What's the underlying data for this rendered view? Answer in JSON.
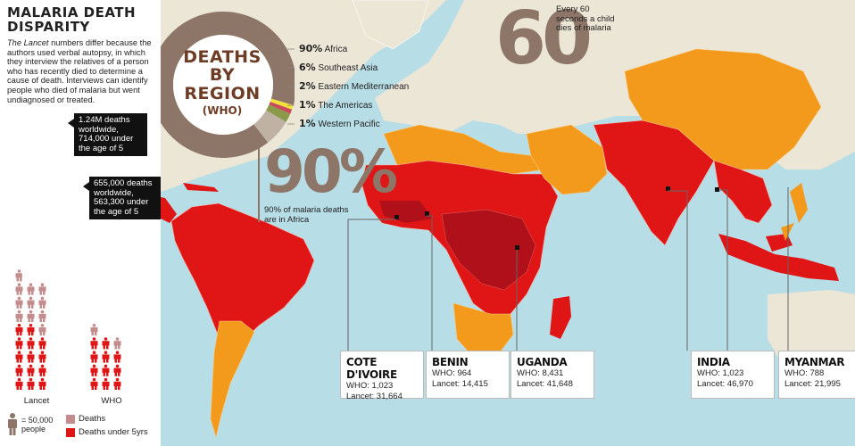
{
  "header": {
    "title_line1": "MALARIA DEATH",
    "title_line2": "DISPARITY",
    "subtitle_italic": "The Lancet",
    "subtitle_rest": " numbers differ because the authors used verbal autopsy, in which they interview the relatives of a person who has recently died to determine a cause of death. Interviews can identify people who died of malaria but went undiagnosed or treated."
  },
  "callouts": {
    "lancet": "1.24M deaths worldwide, 714,000 under the age of 5",
    "who": "655,000 deaths worldwide, 563,300 under the age of 5"
  },
  "legend": {
    "icon_key_line1": "= 50,000",
    "icon_key_line2": "people",
    "deaths": "Deaths",
    "deaths_under5": "Deaths under 5yrs",
    "colors": {
      "deaths": "#c48d8d",
      "deaths_under5": "#e01515",
      "icon": "#8d7668"
    }
  },
  "donut": {
    "title_line1": "DEATHS",
    "title_line2": "BY REGION",
    "title_line3": "(WHO)",
    "labels": [
      {
        "pct": "90%",
        "name": "Africa"
      },
      {
        "pct": "6%",
        "name": "Southeast Asia"
      },
      {
        "pct": "2%",
        "name": "Eastern Mediterranean"
      },
      {
        "pct": "1%",
        "name": "The Americas"
      },
      {
        "pct": "1%",
        "name": "Western Pacific"
      }
    ]
  },
  "stat90": {
    "number": "90%",
    "caption": "90% of malaria deaths are in Africa"
  },
  "stat60": {
    "number": "60",
    "caption": "Every 60 seconds a child dies of malaria"
  },
  "countries": [
    {
      "name": "COTE D'IVOIRE",
      "who": "WHO: 1,023",
      "lancet": "Lancet: 31,664"
    },
    {
      "name": "BENIN",
      "who": "WHO: 964",
      "lancet": "Lancet: 14,415"
    },
    {
      "name": "UGANDA",
      "who": "WHO: 8,431",
      "lancet": "Lancet: 41,648"
    },
    {
      "name": "INDIA",
      "who": "WHO: 1,023",
      "lancet": "Lancet: 46,970"
    },
    {
      "name": "MYANMAR",
      "who": "WHO: 788",
      "lancet": "Lancet: 21,995"
    }
  ],
  "map_colors": {
    "ocean": "#b7dde6",
    "land": "#ece6d6",
    "high": "#e01515",
    "highest": "#b0101a",
    "moderate": "#f39a1c"
  },
  "chart_data": [
    {
      "type": "bar",
      "categories": [
        "Lancet",
        "WHO"
      ],
      "series": [
        {
          "name": "Deaths",
          "values": [
            1240000,
            655000
          ]
        },
        {
          "name": "Deaths under 5yrs",
          "values": [
            714000,
            563300
          ]
        }
      ],
      "unit_per_icon": 50000
    },
    {
      "type": "pie",
      "title": "DEATHS BY REGION (WHO)",
      "labels": [
        "Africa",
        "Southeast Asia",
        "Eastern Mediterranean",
        "The Americas",
        "Western Pacific"
      ],
      "values": [
        90,
        6,
        2,
        1,
        1
      ],
      "colors": [
        "#8d7668",
        "#bfb2a5",
        "#8b9a4a",
        "#c94a5a",
        "#f2e03a"
      ]
    }
  ]
}
